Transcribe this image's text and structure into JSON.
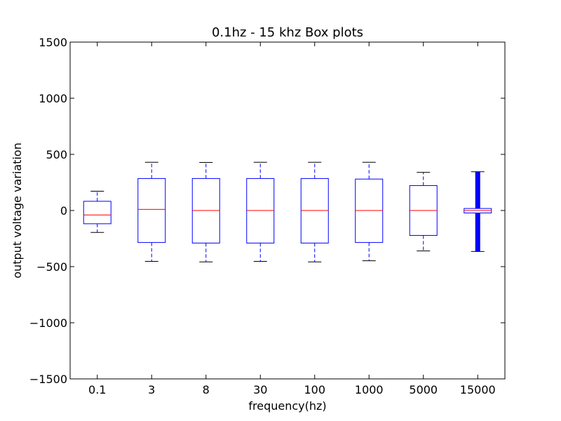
{
  "chart_data": {
    "type": "box",
    "title": "0.1hz - 15 khz Box plots",
    "xlabel": "frequency(hz)",
    "ylabel": "output voltage variation",
    "ylim": [
      -1500,
      1500
    ],
    "yticks": [
      1500,
      1000,
      500,
      0,
      -500,
      -1000,
      -1500
    ],
    "ytick_labels": [
      "1500",
      "1000",
      "500",
      "0",
      "−500",
      "−1000",
      "−1500"
    ],
    "categories": [
      "0.1",
      "3",
      "8",
      "30",
      "100",
      "1000",
      "5000",
      "15000"
    ],
    "boxes": [
      {
        "category": "0.1",
        "whislo": -195,
        "q1": -118,
        "med": -40,
        "q3": 82,
        "whishi": 172
      },
      {
        "category": "3",
        "whislo": -453,
        "q1": -285,
        "med": 10,
        "q3": 285,
        "whishi": 430
      },
      {
        "category": "8",
        "whislo": -458,
        "q1": -290,
        "med": 0,
        "q3": 285,
        "whishi": 428
      },
      {
        "category": "30",
        "whislo": -453,
        "q1": -290,
        "med": 0,
        "q3": 285,
        "whishi": 430
      },
      {
        "category": "100",
        "whislo": -458,
        "q1": -290,
        "med": 0,
        "q3": 285,
        "whishi": 430
      },
      {
        "category": "1000",
        "whislo": -448,
        "q1": -285,
        "med": 0,
        "q3": 280,
        "whishi": 430
      },
      {
        "category": "5000",
        "whislo": -360,
        "q1": -222,
        "med": 0,
        "q3": 222,
        "whishi": 340
      },
      {
        "category": "15000",
        "whislo": -365,
        "q1": -22,
        "med": 0,
        "q3": 18,
        "whishi": 345,
        "dense_whiskers": true
      }
    ],
    "colors": {
      "box": "#0000ff",
      "median": "#ff0000",
      "whisker": "#0000ff",
      "cap": "#000000"
    },
    "grid": false
  }
}
